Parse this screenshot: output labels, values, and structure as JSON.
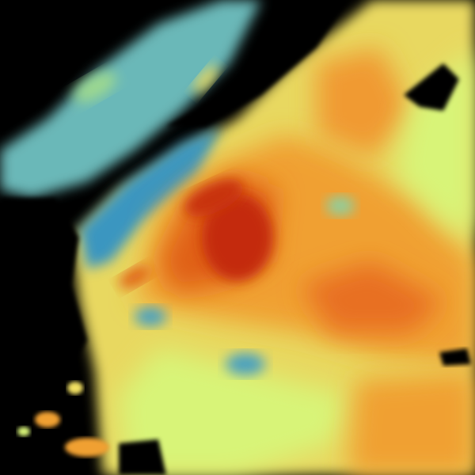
{
  "image": {
    "kind": "weather radar reflectivity composite",
    "background_color": "#000000",
    "palette": {
      "low_blue": "#2f8fbf",
      "teal": "#5fb8b0",
      "green": "#9cd890",
      "yellow_green": "#d8f478",
      "yellow": "#f2e062",
      "orange": "#f0a030",
      "red_orange": "#e06018",
      "dark_red": "#c02808"
    }
  }
}
